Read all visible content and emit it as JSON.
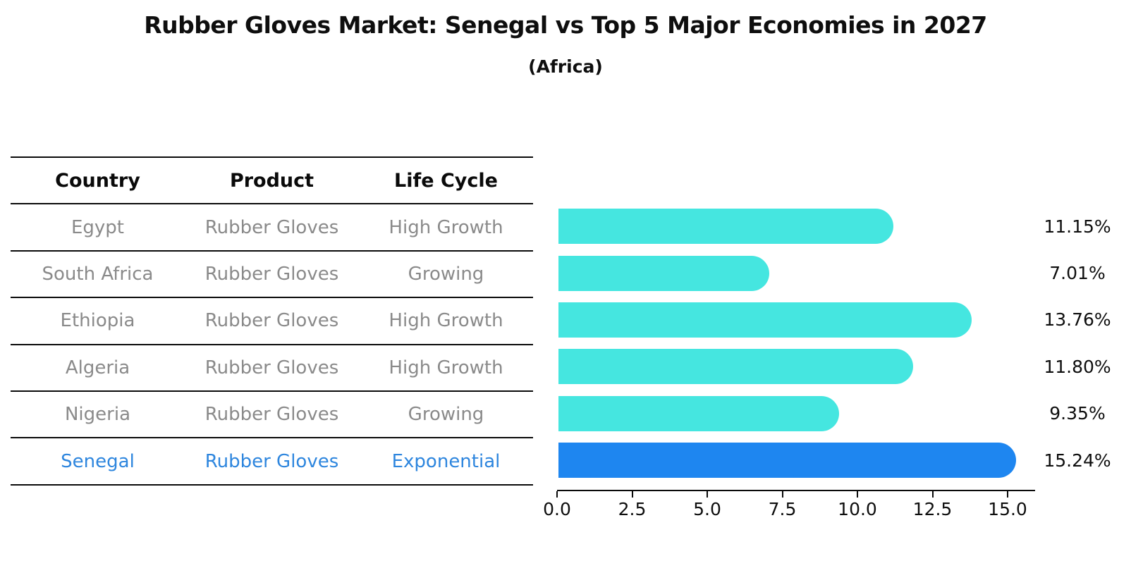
{
  "title": "Rubber Gloves Market: Senegal vs Top 5 Major Economies in 2027",
  "subtitle": "(Africa)",
  "table": {
    "headers": [
      "Country",
      "Product",
      "Life Cycle"
    ],
    "rows": [
      {
        "country": "Egypt",
        "product": "Rubber Gloves",
        "life_cycle": "High Growth",
        "highlight": false
      },
      {
        "country": "South Africa",
        "product": "Rubber Gloves",
        "life_cycle": "Growing",
        "highlight": false
      },
      {
        "country": "Ethiopia",
        "product": "Rubber Gloves",
        "life_cycle": "High Growth",
        "highlight": false
      },
      {
        "country": "Algeria",
        "product": "Rubber Gloves",
        "life_cycle": "High Growth",
        "highlight": false
      },
      {
        "country": "Nigeria",
        "product": "Rubber Gloves",
        "life_cycle": "Growing",
        "highlight": false
      },
      {
        "country": "Senegal",
        "product": "Rubber Gloves",
        "life_cycle": "Exponential",
        "highlight": true
      }
    ]
  },
  "chart_data": {
    "type": "bar",
    "orientation": "horizontal",
    "title": "Rubber Gloves Market: Senegal vs Top 5 Major Economies in 2027",
    "subtitle": "(Africa)",
    "categories": [
      "Egypt",
      "South Africa",
      "Ethiopia",
      "Algeria",
      "Nigeria",
      "Senegal"
    ],
    "values": [
      11.15,
      7.01,
      13.76,
      11.8,
      9.35,
      15.24
    ],
    "labels": [
      "11.15%",
      "7.01%",
      "13.76%",
      "11.80%",
      "9.35%",
      "15.24%"
    ],
    "x_ticks": [
      "0.0",
      "2.5",
      "5.0",
      "7.5",
      "10.0",
      "12.5",
      "15.0"
    ],
    "xlim": [
      0,
      16
    ],
    "grid": false,
    "legend": "none",
    "bar_color": "#45e6e0",
    "highlight_color": "#1e86f0",
    "highlight_index": 5,
    "highlight_text_color": "#2e86de"
  }
}
